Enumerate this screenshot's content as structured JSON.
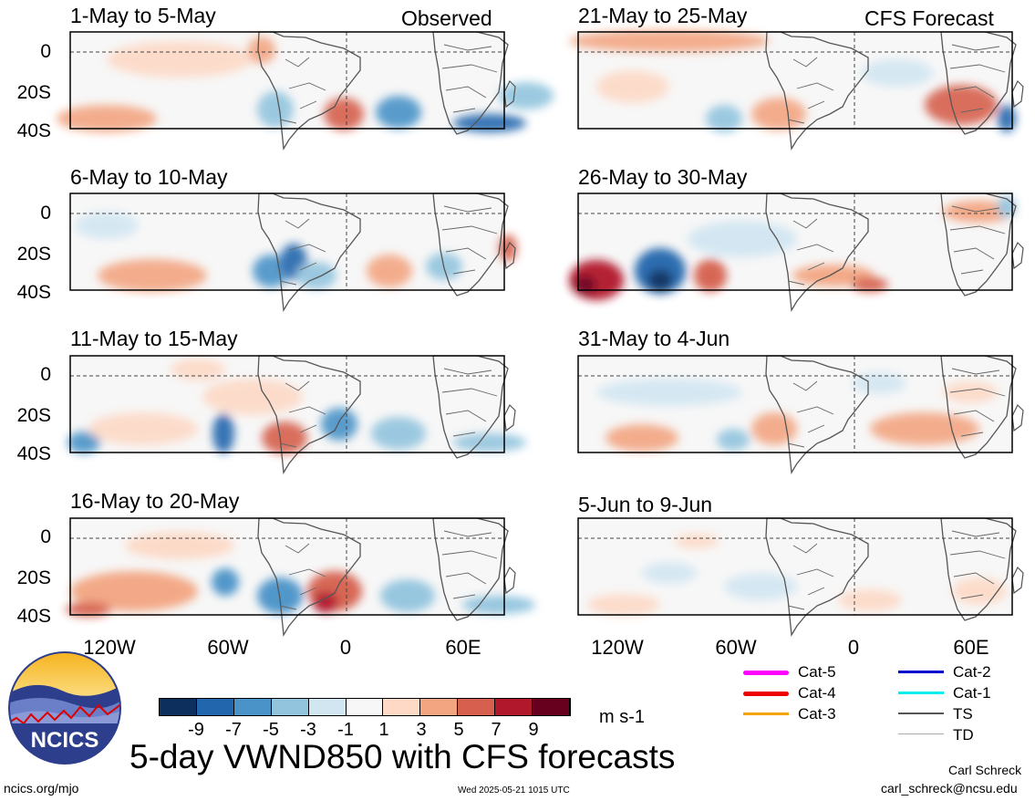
{
  "header": {
    "observed_label": "Observed",
    "forecast_label": "CFS Forecast"
  },
  "left_panels": [
    {
      "title": "1-May to 5-May"
    },
    {
      "title": "6-May to 10-May"
    },
    {
      "title": "11-May to 15-May"
    },
    {
      "title": "16-May to 20-May"
    }
  ],
  "right_panels": [
    {
      "title": "21-May to 25-May"
    },
    {
      "title": "26-May to 30-May"
    },
    {
      "title": "31-May to 4-Jun"
    },
    {
      "title": "5-Jun to 9-Jun"
    }
  ],
  "lat_labels": [
    "0",
    "20S",
    "40S"
  ],
  "lon_labels": [
    "120W",
    "60W",
    "0",
    "60E"
  ],
  "colorbar": {
    "ticks": [
      "-9",
      "-7",
      "-5",
      "-3",
      "-1",
      "1",
      "3",
      "5",
      "7",
      "9"
    ],
    "colors": [
      "#0d2f5e",
      "#2266ad",
      "#4a93c8",
      "#92c4de",
      "#d2e6f2",
      "#f7f7f7",
      "#fdd9c6",
      "#f3a582",
      "#d6604d",
      "#b2182b",
      "#67001f"
    ],
    "unit": "m s-1"
  },
  "storm_legend": [
    {
      "label": "Cat-5",
      "color": "#ff00ff"
    },
    {
      "label": "Cat-4",
      "color": "#ee0000"
    },
    {
      "label": "Cat-3",
      "color": "#f5a300"
    },
    {
      "label": "Cat-2",
      "color": "#0000cc"
    },
    {
      "label": "Cat-1",
      "color": "#00eeee"
    },
    {
      "label": "TS",
      "color": "#555555"
    },
    {
      "label": "TD",
      "color": "#aaaaaa"
    }
  ],
  "logo": {
    "text": "NCICS"
  },
  "footer": {
    "title": "5-day VWND850 with CFS forecasts",
    "url": "ncics.org/mjo",
    "timestamp": "Wed 2025-05-21 1015 UTC",
    "author": "Carl Schreck",
    "email": "carl_schreck@ncsu.edu"
  }
}
